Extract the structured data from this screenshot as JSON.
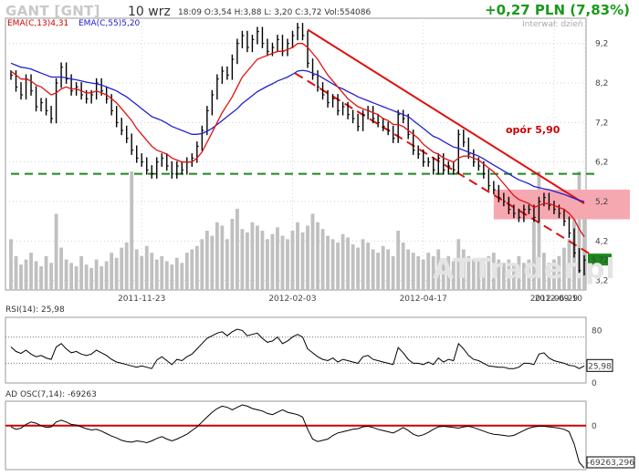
{
  "header": {
    "ticker": "GANT [GNT]",
    "date": "10 wrz",
    "quote_line": "18:09  O:3,54 H:3,88 L: 3,20 C:3,72 Vol:554086",
    "change": "+0,27 PLN (7,83%)",
    "interval": "Interwał: dzień",
    "watermark": "ATTrader.pl"
  },
  "colors": {
    "ema13": "#e01010",
    "ema55": "#2020d0",
    "support": "#1c8a1c",
    "trend": "#e01010",
    "zone": "#f6a8b0",
    "price": "#000000",
    "volume": "#c0c0c0",
    "last_price_badge": "#1a8a1a",
    "osc_zero": "#cc0000"
  },
  "chart_data": [
    {
      "type": "line",
      "panel": "price",
      "legend": [
        "EMA(C,13)4,31",
        "EMA(C,55)5,20"
      ],
      "x_ticks": [
        "2011-11-23",
        "2012-02-03",
        "2012-04-17",
        "2012-06-29",
        "2012-09-10"
      ],
      "y_ticks": [
        "3,2",
        "4,2",
        "5,2",
        "6,2",
        "7,2",
        "8,2",
        "9,2"
      ],
      "ylim": [
        3.1,
        9.7
      ],
      "last_price_label": "3,72",
      "annotations": {
        "resistance_label": "opór 5,90",
        "support_level": 5.9,
        "resistance_zone": [
          4.75,
          5.5
        ]
      },
      "close": [
        8.4,
        8.1,
        7.9,
        8.3,
        8.0,
        7.6,
        7.7,
        7.5,
        7.3,
        8.2,
        8.6,
        8.3,
        8.0,
        8.1,
        7.9,
        7.8,
        7.9,
        8.2,
        8.0,
        7.8,
        7.5,
        7.2,
        7.0,
        6.8,
        6.5,
        6.3,
        6.2,
        6.0,
        5.9,
        6.2,
        6.3,
        6.1,
        5.9,
        6.1,
        6.0,
        6.2,
        6.3,
        6.6,
        7.0,
        7.5,
        7.9,
        8.3,
        8.5,
        8.4,
        8.8,
        9.2,
        9.4,
        9.1,
        9.3,
        9.5,
        9.2,
        9.0,
        9.1,
        9.3,
        9.0,
        9.2,
        9.4,
        9.6,
        9.4,
        8.7,
        8.4,
        8.1,
        7.9,
        7.7,
        7.8,
        7.5,
        7.6,
        7.4,
        7.3,
        7.1,
        7.4,
        7.5,
        7.3,
        7.2,
        7.1,
        7.0,
        6.8,
        7.4,
        7.3,
        6.9,
        6.5,
        6.4,
        6.2,
        6.2,
        6.0,
        6.3,
        6.0,
        6.1,
        6.0,
        6.9,
        6.7,
        6.4,
        6.2,
        6.1,
        5.9,
        5.6,
        5.5,
        5.3,
        5.2,
        5.0,
        4.9,
        4.8,
        5.0,
        5.0,
        4.8,
        5.2,
        5.3,
        5.1,
        5.0,
        4.9,
        4.7,
        4.4,
        3.9,
        3.45,
        3.72
      ],
      "ema13": [
        8.5,
        8.4,
        8.3,
        8.3,
        8.25,
        8.15,
        8.1,
        8.0,
        7.9,
        7.95,
        8.05,
        8.1,
        8.05,
        8.05,
        8.0,
        7.95,
        7.95,
        8.0,
        7.95,
        7.9,
        7.8,
        7.7,
        7.55,
        7.4,
        7.25,
        7.05,
        6.9,
        6.75,
        6.6,
        6.5,
        6.45,
        6.4,
        6.3,
        6.25,
        6.2,
        6.2,
        6.2,
        6.3,
        6.45,
        6.7,
        6.95,
        7.2,
        7.45,
        7.65,
        7.85,
        8.1,
        8.35,
        8.5,
        8.65,
        8.8,
        8.85,
        8.9,
        8.95,
        9.0,
        9.0,
        9.05,
        9.1,
        9.2,
        9.2,
        9.1,
        8.95,
        8.8,
        8.6,
        8.4,
        8.25,
        8.1,
        7.95,
        7.8,
        7.7,
        7.6,
        7.55,
        7.5,
        7.45,
        7.4,
        7.3,
        7.25,
        7.15,
        7.15,
        7.1,
        7.0,
        6.9,
        6.8,
        6.65,
        6.55,
        6.45,
        6.4,
        6.3,
        6.25,
        6.2,
        6.3,
        6.35,
        6.35,
        6.3,
        6.25,
        6.15,
        6.05,
        5.95,
        5.8,
        5.65,
        5.5,
        5.35,
        5.25,
        5.2,
        5.15,
        5.05,
        5.1,
        5.15,
        5.15,
        5.1,
        5.05,
        5.0,
        4.9,
        4.75,
        4.5,
        4.31
      ],
      "ema55": [
        8.7,
        8.65,
        8.6,
        8.58,
        8.55,
        8.5,
        8.45,
        8.4,
        8.35,
        8.35,
        8.35,
        8.33,
        8.3,
        8.28,
        8.25,
        8.22,
        8.2,
        8.18,
        8.15,
        8.1,
        8.05,
        8.0,
        7.92,
        7.85,
        7.75,
        7.65,
        7.55,
        7.45,
        7.35,
        7.3,
        7.25,
        7.18,
        7.1,
        7.05,
        7.0,
        6.95,
        6.9,
        6.9,
        6.92,
        6.98,
        7.05,
        7.15,
        7.25,
        7.35,
        7.45,
        7.55,
        7.68,
        7.78,
        7.88,
        7.98,
        8.05,
        8.12,
        8.18,
        8.25,
        8.3,
        8.35,
        8.42,
        8.5,
        8.52,
        8.5,
        8.45,
        8.4,
        8.33,
        8.25,
        8.18,
        8.1,
        8.05,
        7.98,
        7.92,
        7.85,
        7.8,
        7.75,
        7.7,
        7.65,
        7.6,
        7.55,
        7.5,
        7.45,
        7.4,
        7.35,
        7.25,
        7.15,
        7.05,
        6.95,
        6.85,
        6.8,
        6.72,
        6.65,
        6.58,
        6.55,
        6.5,
        6.45,
        6.4,
        6.35,
        6.28,
        6.2,
        6.12,
        6.05,
        5.97,
        5.9,
        5.82,
        5.75,
        5.7,
        5.65,
        5.58,
        5.55,
        5.52,
        5.5,
        5.46,
        5.42,
        5.38,
        5.33,
        5.28,
        5.23,
        5.2
      ],
      "volume": [
        30,
        20,
        15,
        18,
        22,
        17,
        14,
        20,
        16,
        45,
        25,
        18,
        16,
        14,
        20,
        15,
        13,
        18,
        14,
        17,
        22,
        19,
        25,
        28,
        70,
        24,
        20,
        26,
        22,
        18,
        20,
        17,
        15,
        19,
        16,
        22,
        24,
        26,
        30,
        35,
        32,
        40,
        38,
        30,
        42,
        48,
        36,
        34,
        40,
        38,
        35,
        30,
        33,
        37,
        32,
        30,
        35,
        40,
        34,
        38,
        45,
        40,
        36,
        32,
        30,
        28,
        33,
        31,
        27,
        25,
        30,
        28,
        24,
        22,
        26,
        24,
        20,
        35,
        28,
        24,
        22,
        20,
        18,
        22,
        20,
        24,
        18,
        20,
        17,
        30,
        24,
        20,
        18,
        17,
        16,
        20,
        22,
        18,
        16,
        18,
        15,
        20,
        16,
        18,
        40,
        70,
        22,
        16,
        18,
        20,
        25,
        30,
        45,
        70,
        55
      ]
    },
    {
      "type": "line",
      "panel": "rsi",
      "title": "RSI(14): 25,98",
      "y_ticks": [
        "80",
        "0"
      ],
      "ylim": [
        0,
        100
      ],
      "levels": [
        70,
        30
      ],
      "last_value_label": "25,98",
      "values": [
        55,
        48,
        45,
        50,
        44,
        40,
        42,
        38,
        36,
        55,
        60,
        52,
        46,
        48,
        44,
        42,
        44,
        50,
        46,
        42,
        36,
        32,
        30,
        28,
        26,
        24,
        26,
        24,
        22,
        35,
        40,
        34,
        28,
        36,
        34,
        40,
        44,
        52,
        60,
        68,
        72,
        76,
        78,
        72,
        78,
        82,
        80,
        72,
        74,
        76,
        68,
        62,
        64,
        70,
        60,
        64,
        70,
        74,
        70,
        52,
        46,
        40,
        36,
        34,
        38,
        32,
        36,
        34,
        32,
        30,
        40,
        42,
        36,
        34,
        32,
        30,
        28,
        54,
        46,
        36,
        30,
        30,
        28,
        32,
        28,
        38,
        32,
        36,
        34,
        60,
        52,
        42,
        36,
        34,
        30,
        26,
        25,
        24,
        24,
        22,
        22,
        24,
        30,
        30,
        28,
        44,
        46,
        38,
        34,
        32,
        30,
        27,
        26,
        22,
        25.98
      ]
    },
    {
      "type": "line",
      "panel": "ad_osc",
      "title": "AD OSC(7,14): -69263",
      "y_ticks": [
        "0"
      ],
      "ylim": [
        -72000,
        40000
      ],
      "last_value_label": "-69263,296",
      "values": [
        -2000,
        -6000,
        -4000,
        2000,
        6000,
        4000,
        0,
        -3000,
        -2000,
        6000,
        9000,
        6000,
        2000,
        1000,
        -2000,
        -5000,
        -7000,
        -6000,
        -9000,
        -13000,
        -17000,
        -20000,
        -24000,
        -26000,
        -27000,
        -25000,
        -26000,
        -28000,
        -25000,
        -21000,
        -18000,
        -22000,
        -25000,
        -22000,
        -18000,
        -14000,
        -8000,
        -2000,
        6000,
        14000,
        22000,
        28000,
        32000,
        30000,
        26000,
        30000,
        34000,
        32000,
        28000,
        26000,
        24000,
        20000,
        18000,
        22000,
        26000,
        22000,
        20000,
        18000,
        14000,
        -6000,
        -22000,
        -26000,
        -24000,
        -22000,
        -16000,
        -12000,
        -10000,
        -8000,
        -6000,
        -5000,
        -2000,
        -1000,
        -3000,
        -6000,
        -8000,
        -10000,
        -12000,
        -8000,
        -3000,
        -8000,
        -14000,
        -17000,
        -15000,
        -11000,
        -6000,
        -2000,
        -1000,
        -2000,
        -3000,
        -4000,
        -2000,
        -1000,
        -3000,
        -6000,
        -9000,
        -12000,
        -14000,
        -15000,
        -16000,
        -17000,
        -16000,
        -12000,
        -8000,
        -4000,
        -2000,
        -1000,
        -1000,
        -2000,
        -3000,
        -4000,
        -6000,
        -10000,
        -30000,
        -60000,
        -69263
      ]
    }
  ]
}
